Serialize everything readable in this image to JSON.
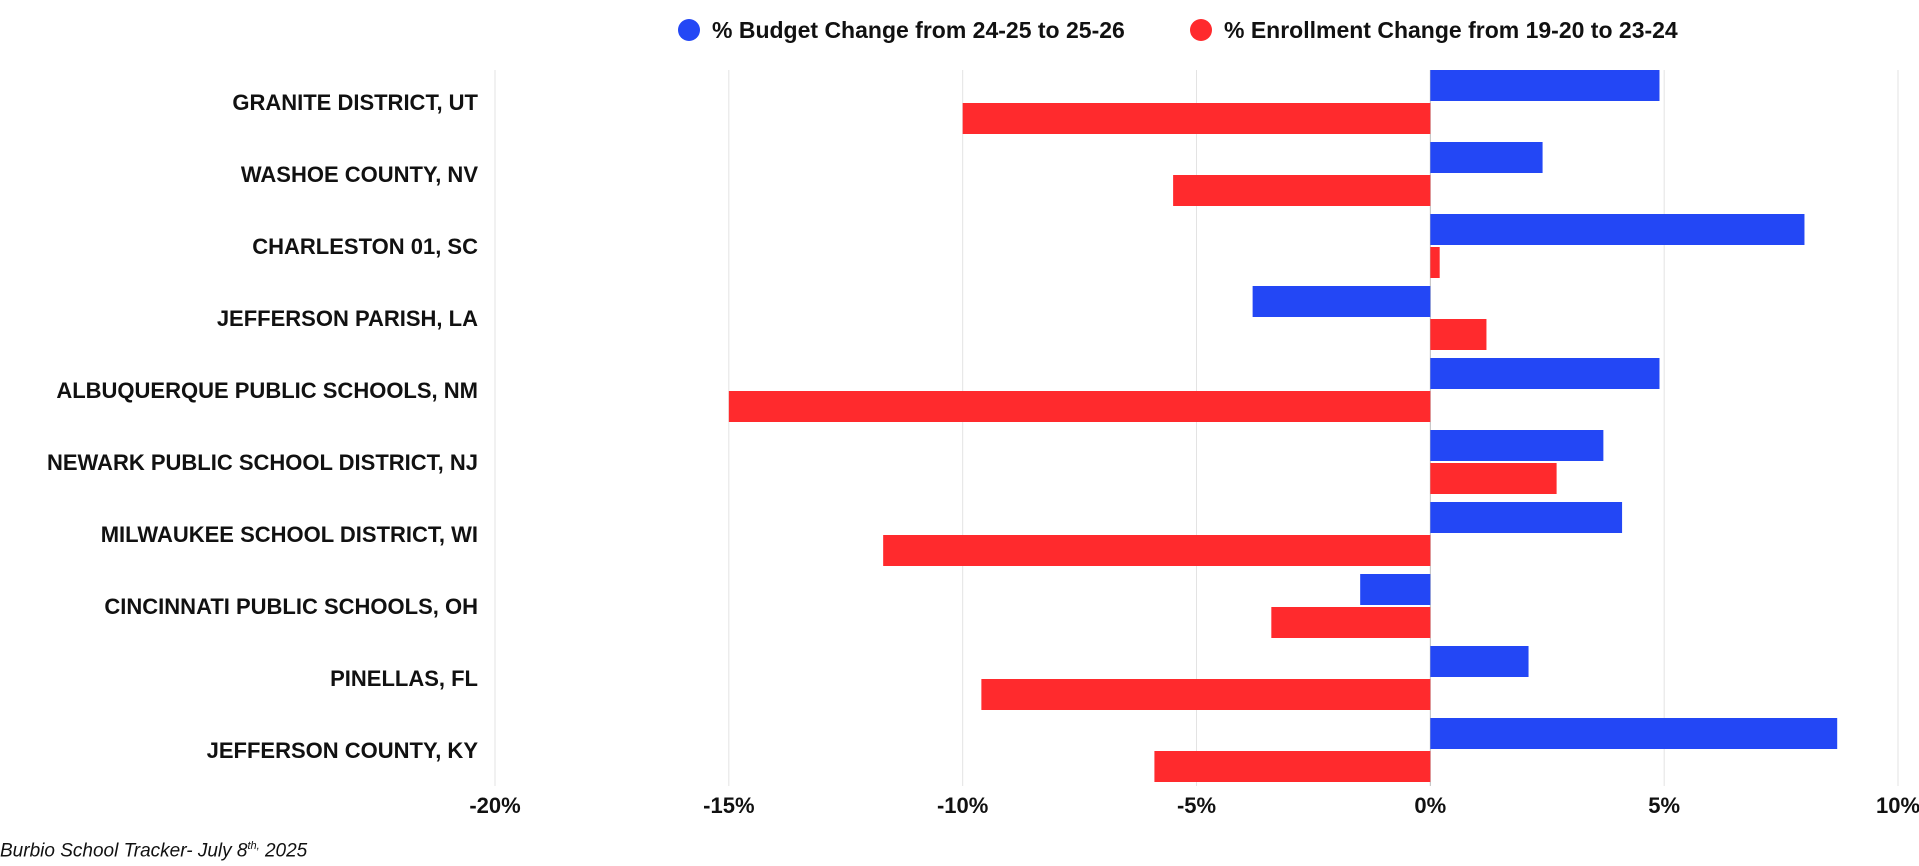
{
  "chart_data": {
    "type": "bar",
    "orientation": "horizontal",
    "categories": [
      "GRANITE DISTRICT, UT",
      "WASHOE COUNTY, NV",
      "CHARLESTON 01, SC",
      "JEFFERSON PARISH, LA",
      "ALBUQUERQUE PUBLIC SCHOOLS, NM",
      "NEWARK PUBLIC SCHOOL DISTRICT, NJ",
      "MILWAUKEE SCHOOL DISTRICT, WI",
      "CINCINNATI PUBLIC SCHOOLS, OH",
      "PINELLAS, FL",
      "JEFFERSON COUNTY, KY"
    ],
    "series": [
      {
        "name": "% Budget Change from 24-25 to 25-26",
        "color": "#2347f5",
        "values": [
          4.9,
          2.4,
          8.0,
          -3.8,
          4.9,
          3.7,
          4.1,
          -1.5,
          2.1,
          8.7
        ]
      },
      {
        "name": "% Enrollment Change from 19-20 to 23-24",
        "color": "#ff2a2d",
        "values": [
          -10.0,
          -5.5,
          0.2,
          1.2,
          -15.0,
          2.7,
          -11.7,
          -3.4,
          -9.6,
          -5.9
        ]
      }
    ],
    "xlim": [
      -20,
      10
    ],
    "xticks": [
      -20,
      -15,
      -10,
      -5,
      0,
      5,
      10
    ],
    "xtick_labels": [
      "-20%",
      "-15%",
      "-10%",
      "-5%",
      "0%",
      "5%",
      "10%"
    ],
    "grid": "vertical",
    "legend_position": "top-center"
  },
  "footer": {
    "text": "Burbio School Tracker- July  8",
    "sup": "th,",
    "year": " 2025"
  }
}
